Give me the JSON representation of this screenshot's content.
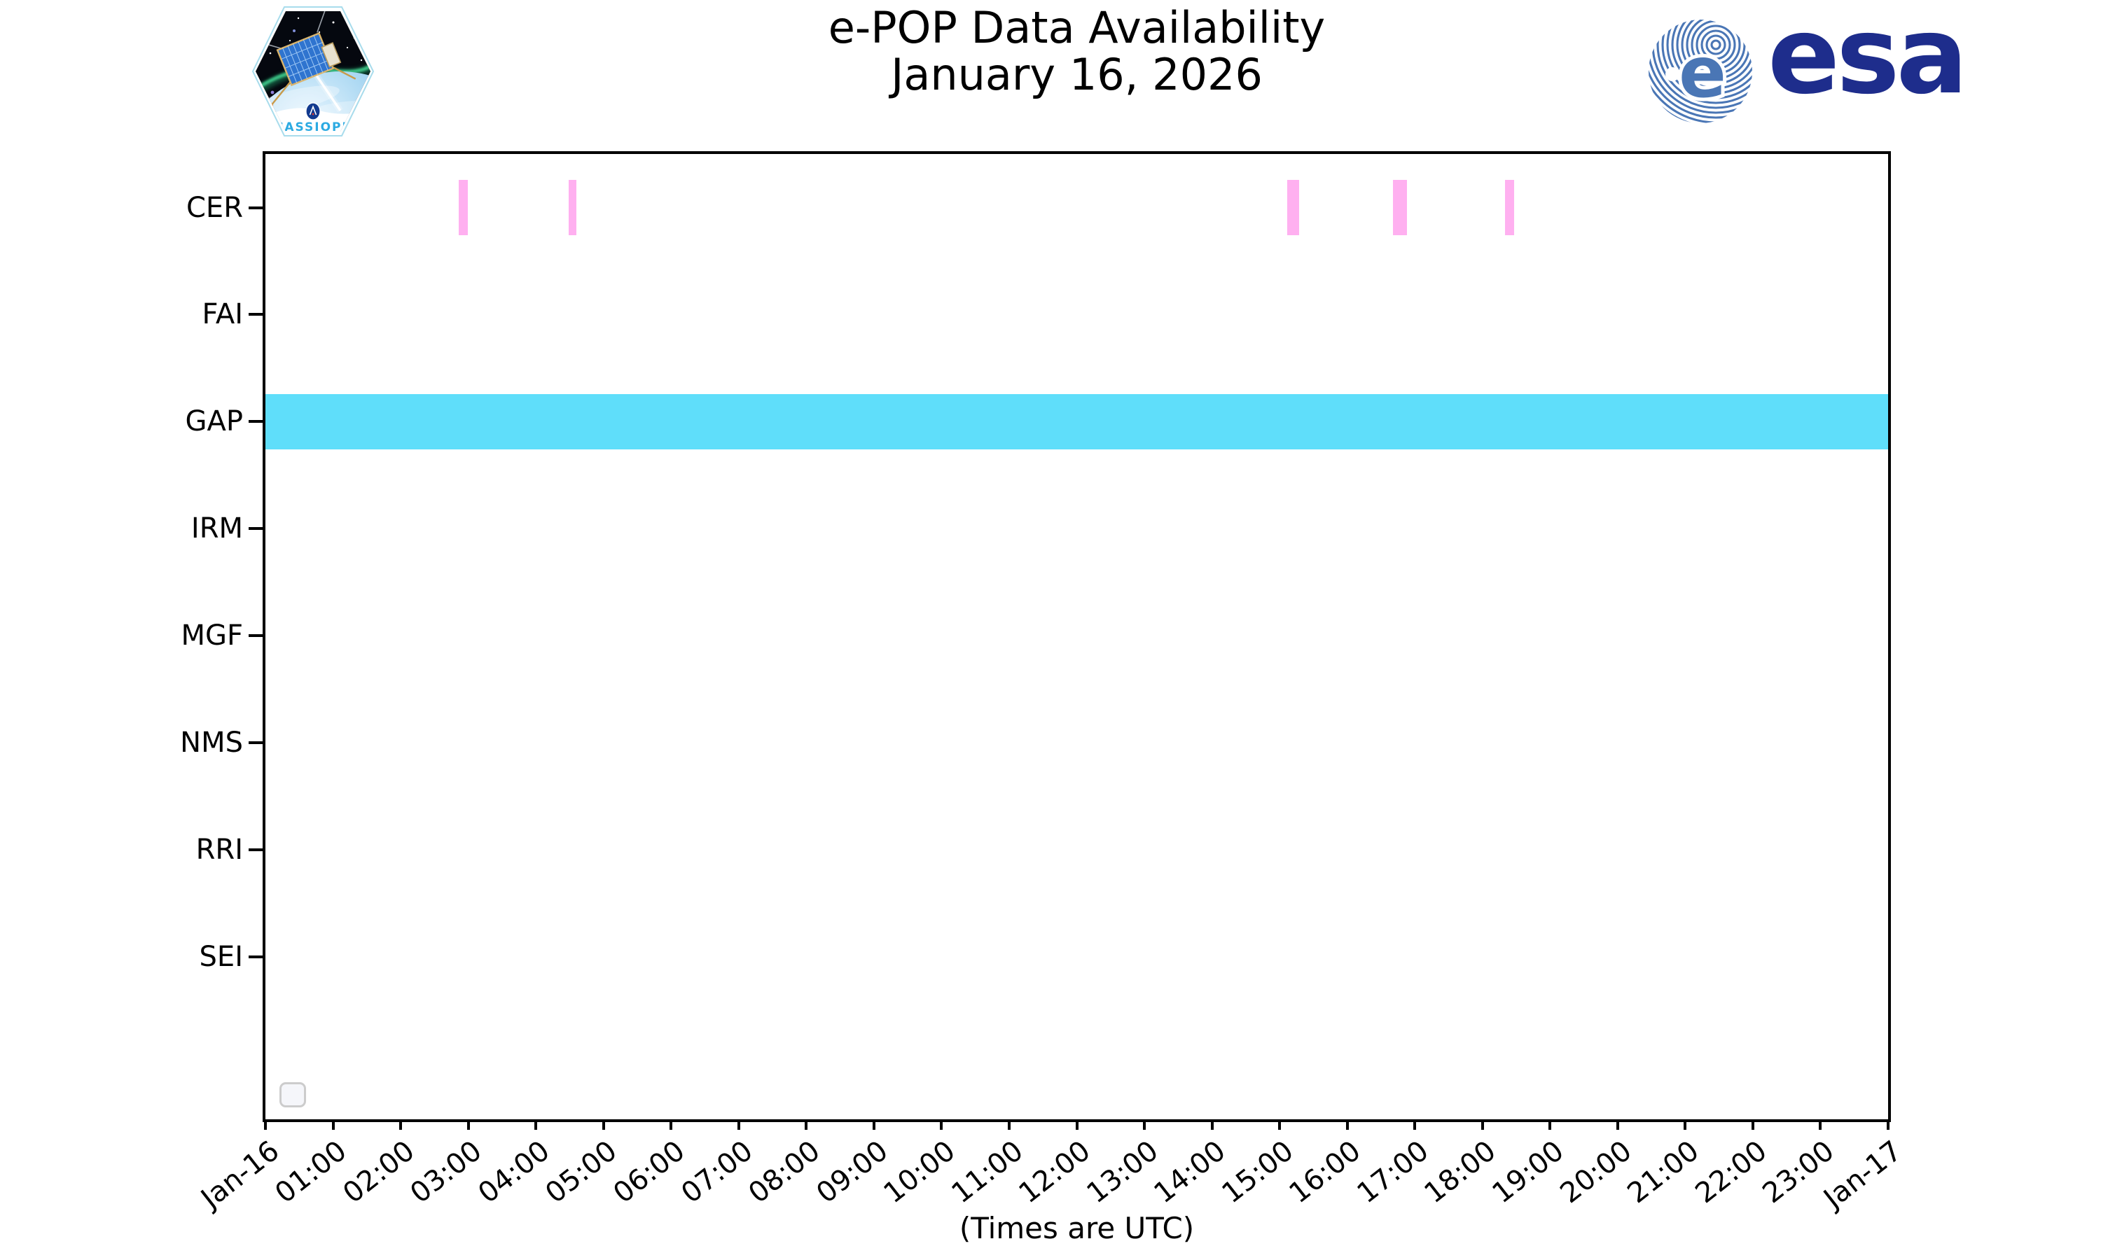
{
  "header": {
    "title_line1": "e-POP Data Availability",
    "title_line2": "January 16, 2026",
    "cassiope_patch": {
      "label": "CASSIOPE"
    },
    "esa_logo": {
      "text": "esa",
      "globe_letter": "e"
    }
  },
  "chart_data": {
    "type": "bar",
    "subtype": "availability-timeline-gantt",
    "title": "e-POP Data Availability",
    "subtitle": "January 16, 2026",
    "xlabel": "(Times are UTC)",
    "x_axis": {
      "start": "Jan-16 00:00",
      "end": "Jan-17 00:00",
      "hours_span": 24,
      "tick_labels": [
        "Jan-16",
        "01:00",
        "02:00",
        "03:00",
        "04:00",
        "05:00",
        "06:00",
        "07:00",
        "08:00",
        "09:00",
        "10:00",
        "11:00",
        "12:00",
        "13:00",
        "14:00",
        "15:00",
        "16:00",
        "17:00",
        "18:00",
        "19:00",
        "20:00",
        "21:00",
        "22:00",
        "23:00",
        "Jan-17"
      ],
      "tick_rotation_deg": 38
    },
    "y_axis": {
      "instruments": [
        "CER",
        "FAI",
        "GAP",
        "IRM",
        "MGF",
        "NMS",
        "RRI",
        "SEI"
      ]
    },
    "series": [
      {
        "instrument": "CER",
        "color": "#ffb0f0",
        "intervals": [
          {
            "start": "02:52",
            "end": "02:59",
            "start_hour": 2.86,
            "end_hour": 2.99
          },
          {
            "start": "04:29",
            "end": "04:36",
            "start_hour": 4.48,
            "end_hour": 4.6
          },
          {
            "start": "15:07",
            "end": "15:17",
            "start_hour": 15.11,
            "end_hour": 15.29
          },
          {
            "start": "16:41",
            "end": "16:53",
            "start_hour": 16.68,
            "end_hour": 16.88
          },
          {
            "start": "18:20",
            "end": "18:28",
            "start_hour": 18.33,
            "end_hour": 18.47
          }
        ]
      },
      {
        "instrument": "FAI",
        "color": null,
        "intervals": []
      },
      {
        "instrument": "GAP",
        "color": "#5fdefa",
        "intervals": [
          {
            "start": "00:00",
            "end": "24:00",
            "start_hour": 0,
            "end_hour": 24
          }
        ]
      },
      {
        "instrument": "IRM",
        "color": null,
        "intervals": []
      },
      {
        "instrument": "MGF",
        "color": null,
        "intervals": []
      },
      {
        "instrument": "NMS",
        "color": null,
        "intervals": []
      },
      {
        "instrument": "RRI",
        "color": null,
        "intervals": []
      },
      {
        "instrument": "SEI",
        "color": null,
        "intervals": []
      }
    ],
    "legend": {
      "visible": true,
      "entries": [],
      "position": "lower left"
    },
    "layout": {
      "grid": false,
      "first_row_frac": 0.0555,
      "row_spacing_frac": 0.1109,
      "bar_height_frac": 0.0575
    }
  },
  "colors": {
    "background": "#ffffff",
    "spine": "#000000",
    "cer_bar": "#ffb0f0",
    "gap_bar": "#5fdefa",
    "esa_blue": "#1e2d8c",
    "esa_globe_stripe": "#4a76b5",
    "cassiope_text": "#2baae2",
    "legend_border": "#cccccc"
  }
}
